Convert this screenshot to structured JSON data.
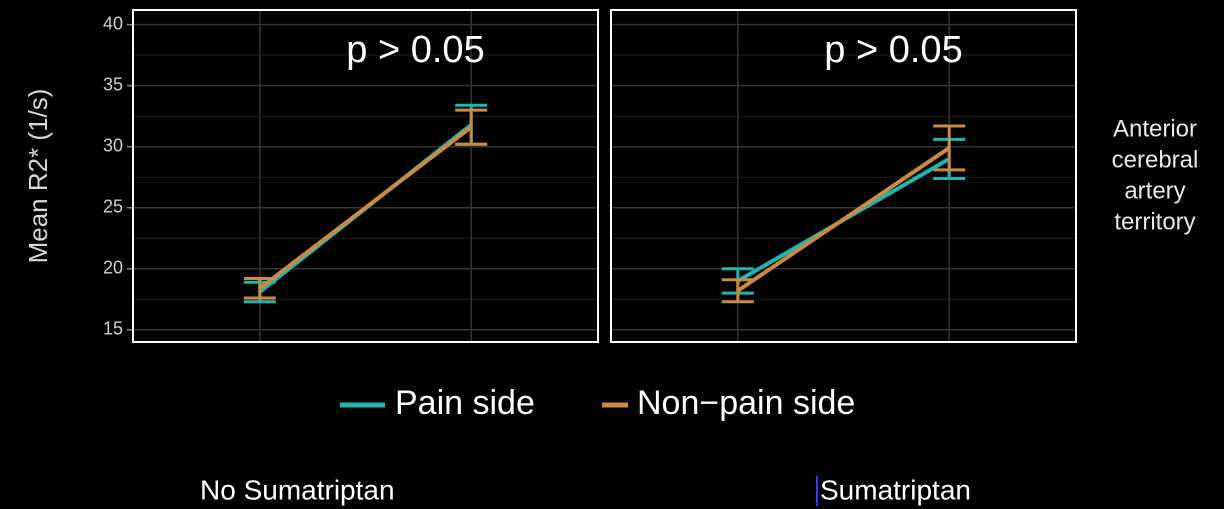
{
  "ylabel": "Mean R2* (1/s)",
  "strip_label": [
    "Anterior",
    "cerebral",
    "artery",
    "territory"
  ],
  "chart_data": [
    {
      "type": "line",
      "annotation": "p > 0.05",
      "label": "No Sumatriptan",
      "categories": [
        null,
        null
      ],
      "ylim": [
        14,
        41.2
      ],
      "yticks": [
        15,
        20,
        25,
        30,
        35,
        40
      ],
      "grid": true,
      "series": [
        {
          "name": "Pain side",
          "color": "#1fb5b0",
          "values": [
            18.1,
            31.8
          ],
          "errors": [
            0.8,
            1.6
          ]
        },
        {
          "name": "Non−pain side",
          "color": "#c88a44",
          "values": [
            18.4,
            31.6
          ],
          "errors": [
            0.8,
            1.4
          ]
        }
      ]
    },
    {
      "type": "line",
      "annotation": "p > 0.05",
      "label": "Sumatriptan",
      "categories": [
        null,
        null
      ],
      "ylim": [
        14,
        41.2
      ],
      "yticks": [
        15,
        20,
        25,
        30,
        35,
        40
      ],
      "grid": true,
      "series": [
        {
          "name": "Pain side",
          "color": "#1fb5b0",
          "values": [
            19.0,
            29.0
          ],
          "errors": [
            1.0,
            1.6
          ]
        },
        {
          "name": "Non−pain side",
          "color": "#c88a44",
          "values": [
            18.2,
            29.9
          ],
          "errors": [
            0.9,
            1.8
          ]
        }
      ]
    }
  ]
}
